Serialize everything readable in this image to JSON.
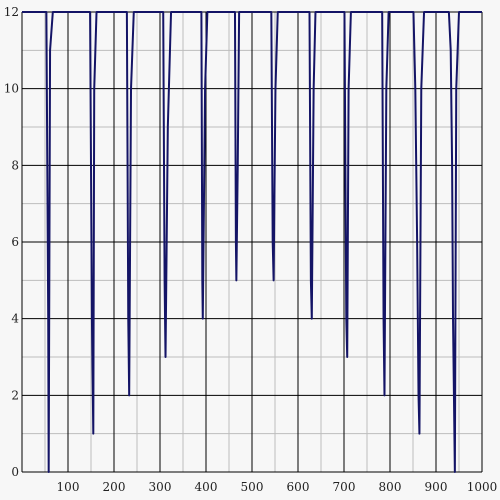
{
  "chart_data": {
    "type": "line",
    "title": "",
    "xlabel": "",
    "ylabel": "",
    "xlim": [
      0,
      1000
    ],
    "ylim": [
      0,
      12
    ],
    "x_ticks": [
      100,
      200,
      300,
      400,
      500,
      600,
      700,
      800,
      900,
      1000
    ],
    "y_ticks": [
      0,
      2,
      4,
      6,
      8,
      10,
      12
    ],
    "x_minor_step": 50,
    "y_minor_step": 1,
    "grid": true,
    "line_color": "#141466",
    "background": "#f7f7f7",
    "series": [
      {
        "points": [
          [
            0,
            12
          ],
          [
            53,
            12
          ],
          [
            54,
            10
          ],
          [
            56,
            6
          ],
          [
            57,
            4
          ],
          [
            58,
            0
          ],
          [
            61,
            11
          ],
          [
            67,
            12
          ],
          [
            98,
            12
          ],
          [
            148,
            12
          ],
          [
            152,
            4
          ],
          [
            155,
            1
          ],
          [
            157,
            10
          ],
          [
            162,
            12
          ],
          [
            193,
            12
          ],
          [
            228,
            12
          ],
          [
            231,
            4
          ],
          [
            233,
            2
          ],
          [
            237,
            10
          ],
          [
            243,
            12
          ],
          [
            273,
            12
          ],
          [
            307,
            12
          ],
          [
            310,
            5
          ],
          [
            312,
            3
          ],
          [
            317,
            9
          ],
          [
            324,
            12
          ],
          [
            352,
            12
          ],
          [
            390,
            12
          ],
          [
            392,
            5
          ],
          [
            393,
            4
          ],
          [
            398,
            10
          ],
          [
            403,
            12
          ],
          [
            433,
            12
          ],
          [
            463,
            12
          ],
          [
            465,
            6
          ],
          [
            466,
            5
          ],
          [
            469,
            8
          ],
          [
            472,
            12
          ],
          [
            493,
            12
          ],
          [
            542,
            12
          ],
          [
            545,
            6
          ],
          [
            547,
            5
          ],
          [
            551,
            10
          ],
          [
            556,
            12
          ],
          [
            590,
            12
          ],
          [
            625,
            12
          ],
          [
            628,
            5
          ],
          [
            630,
            4
          ],
          [
            634,
            10
          ],
          [
            638,
            12
          ],
          [
            670,
            12
          ],
          [
            701,
            12
          ],
          [
            705,
            4
          ],
          [
            707,
            3
          ],
          [
            710,
            10
          ],
          [
            715,
            12
          ],
          [
            750,
            12
          ],
          [
            783,
            12
          ],
          [
            786,
            4
          ],
          [
            788,
            2
          ],
          [
            792,
            10
          ],
          [
            797,
            12
          ],
          [
            830,
            12
          ],
          [
            851,
            12
          ],
          [
            855,
            10
          ],
          [
            859,
            6
          ],
          [
            862,
            2
          ],
          [
            864,
            1
          ],
          [
            868,
            10
          ],
          [
            874,
            12
          ],
          [
            910,
            12
          ],
          [
            928,
            12
          ],
          [
            932,
            11
          ],
          [
            935,
            8
          ],
          [
            937,
            4
          ],
          [
            939,
            2
          ],
          [
            941,
            0
          ],
          [
            944,
            10
          ],
          [
            950,
            12
          ],
          [
            1000,
            12
          ]
        ]
      }
    ]
  }
}
